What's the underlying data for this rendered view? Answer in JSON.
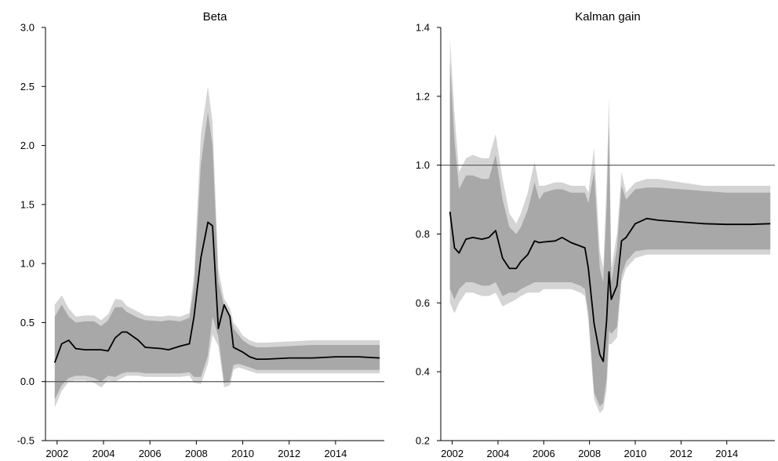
{
  "chart_data": [
    {
      "type": "area",
      "title": "Beta",
      "xlabel": "",
      "ylabel": "",
      "xlim": [
        2001.5,
        2016.1
      ],
      "ylim": [
        -0.5,
        3.0
      ],
      "x_ticks": [
        2002,
        2004,
        2006,
        2008,
        2010,
        2012,
        2014
      ],
      "y_ticks": [
        -0.5,
        0.0,
        0.5,
        1.0,
        1.5,
        2.0,
        2.5,
        3.0
      ],
      "x_tick_labels": [
        "2002",
        "2004",
        "2006",
        "2008",
        "2010",
        "2012",
        "2014"
      ],
      "y_tick_labels": [
        "-0.5",
        "0.0",
        "0.5",
        "1.0",
        "1.5",
        "2.0",
        "2.5",
        "3.0"
      ],
      "reference_line": 0.0,
      "grid": false,
      "colors": {
        "outer_band": "#d4d4d4",
        "inner_band": "#a8a8a8",
        "median": "#000000",
        "reference": "#555555"
      },
      "x": [
        2001.9,
        2002.2,
        2002.5,
        2002.8,
        2003.2,
        2003.6,
        2003.9,
        2004.2,
        2004.5,
        2004.8,
        2005.0,
        2005.5,
        2005.8,
        2006.5,
        2006.8,
        2007.3,
        2007.7,
        2007.9,
        2008.2,
        2008.5,
        2008.7,
        2008.95,
        2009.2,
        2009.45,
        2009.6,
        2009.8,
        2010.0,
        2010.3,
        2010.6,
        2011.0,
        2012.0,
        2013.0,
        2014.0,
        2015.0,
        2015.9
      ],
      "median": [
        0.16,
        0.32,
        0.35,
        0.28,
        0.27,
        0.27,
        0.27,
        0.26,
        0.37,
        0.42,
        0.42,
        0.35,
        0.29,
        0.28,
        0.27,
        0.3,
        0.32,
        0.55,
        1.05,
        1.35,
        1.32,
        0.45,
        0.65,
        0.55,
        0.29,
        0.27,
        0.25,
        0.21,
        0.19,
        0.19,
        0.2,
        0.2,
        0.21,
        0.21,
        0.2
      ],
      "lower_90": [
        -0.22,
        -0.08,
        0.0,
        0.01,
        0.01,
        -0.01,
        -0.05,
        0.01,
        0.0,
        0.03,
        0.05,
        0.05,
        0.04,
        0.04,
        0.04,
        0.04,
        0.05,
        -0.01,
        -0.02,
        0.15,
        0.4,
        0.3,
        -0.05,
        -0.03,
        0.1,
        0.12,
        0.11,
        0.09,
        0.07,
        0.07,
        0.07,
        0.07,
        0.07,
        0.07,
        0.07
      ],
      "upper_90": [
        0.65,
        0.73,
        0.62,
        0.55,
        0.56,
        0.56,
        0.52,
        0.57,
        0.7,
        0.69,
        0.64,
        0.59,
        0.56,
        0.55,
        0.56,
        0.55,
        0.58,
        0.9,
        2.1,
        2.5,
        2.2,
        0.95,
        0.7,
        0.62,
        0.5,
        0.45,
        0.39,
        0.35,
        0.33,
        0.33,
        0.34,
        0.35,
        0.35,
        0.35,
        0.35
      ],
      "lower_68": [
        -0.15,
        -0.03,
        0.03,
        0.05,
        0.05,
        0.03,
        0.0,
        0.05,
        0.04,
        0.07,
        0.08,
        0.08,
        0.07,
        0.07,
        0.07,
        0.07,
        0.08,
        0.04,
        0.04,
        0.22,
        0.55,
        0.38,
        -0.01,
        0.01,
        0.14,
        0.15,
        0.14,
        0.12,
        0.1,
        0.1,
        0.1,
        0.1,
        0.1,
        0.1,
        0.1
      ],
      "upper_68": [
        0.55,
        0.65,
        0.55,
        0.5,
        0.51,
        0.51,
        0.47,
        0.52,
        0.63,
        0.63,
        0.59,
        0.54,
        0.52,
        0.51,
        0.52,
        0.51,
        0.54,
        0.8,
        1.85,
        2.28,
        2.0,
        0.85,
        0.64,
        0.56,
        0.45,
        0.4,
        0.35,
        0.31,
        0.29,
        0.29,
        0.3,
        0.31,
        0.31,
        0.31,
        0.31
      ]
    },
    {
      "type": "area",
      "title": "Kalman gain",
      "xlabel": "",
      "ylabel": "",
      "xlim": [
        2001.5,
        2016.1
      ],
      "ylim": [
        0.2,
        1.4
      ],
      "x_ticks": [
        2002,
        2004,
        2006,
        2008,
        2010,
        2012,
        2014
      ],
      "y_ticks": [
        0.2,
        0.4,
        0.6,
        0.8,
        1.0,
        1.2,
        1.4
      ],
      "x_tick_labels": [
        "2002",
        "2004",
        "2006",
        "2008",
        "2010",
        "2012",
        "2014"
      ],
      "y_tick_labels": [
        "0.2",
        "0.4",
        "0.6",
        "0.8",
        "1.0",
        "1.2",
        "1.4"
      ],
      "reference_line": 1.0,
      "grid": false,
      "colors": {
        "outer_band": "#d4d4d4",
        "inner_band": "#a8a8a8",
        "median": "#000000",
        "reference": "#555555"
      },
      "x": [
        2001.9,
        2002.1,
        2002.3,
        2002.6,
        2002.9,
        2003.3,
        2003.6,
        2003.9,
        2004.2,
        2004.5,
        2004.8,
        2005.0,
        2005.3,
        2005.6,
        2005.8,
        2006.0,
        2006.5,
        2006.8,
        2007.2,
        2007.6,
        2007.8,
        2007.95,
        2008.2,
        2008.45,
        2008.6,
        2008.75,
        2008.85,
        2008.95,
        2009.2,
        2009.4,
        2009.6,
        2010.0,
        2010.5,
        2011.0,
        2012.0,
        2013.0,
        2014.0,
        2015.0,
        2015.9
      ],
      "median": [
        0.865,
        0.76,
        0.745,
        0.785,
        0.79,
        0.785,
        0.79,
        0.81,
        0.73,
        0.7,
        0.7,
        0.72,
        0.74,
        0.78,
        0.775,
        0.777,
        0.78,
        0.79,
        0.775,
        0.765,
        0.76,
        0.7,
        0.54,
        0.45,
        0.43,
        0.55,
        0.69,
        0.61,
        0.65,
        0.78,
        0.79,
        0.83,
        0.845,
        0.84,
        0.835,
        0.83,
        0.828,
        0.828,
        0.83
      ],
      "lower_90": [
        0.6,
        0.57,
        0.6,
        0.63,
        0.63,
        0.62,
        0.62,
        0.63,
        0.59,
        0.6,
        0.61,
        0.62,
        0.63,
        0.63,
        0.63,
        0.64,
        0.64,
        0.64,
        0.64,
        0.63,
        0.62,
        0.55,
        0.32,
        0.28,
        0.29,
        0.35,
        0.48,
        0.48,
        0.5,
        0.66,
        0.7,
        0.73,
        0.74,
        0.74,
        0.74,
        0.74,
        0.74,
        0.74,
        0.74
      ],
      "upper_90": [
        1.37,
        1.15,
        0.98,
        1.02,
        1.03,
        1.02,
        1.02,
        1.09,
        0.96,
        0.86,
        0.83,
        0.86,
        0.92,
        1.01,
        0.94,
        0.94,
        0.95,
        0.95,
        0.94,
        0.94,
        0.94,
        0.92,
        1.05,
        0.75,
        0.7,
        0.95,
        1.2,
        0.7,
        0.8,
        0.98,
        0.92,
        0.95,
        0.96,
        0.96,
        0.95,
        0.94,
        0.94,
        0.94,
        0.94
      ],
      "lower_68": [
        0.64,
        0.61,
        0.64,
        0.66,
        0.66,
        0.65,
        0.65,
        0.66,
        0.62,
        0.63,
        0.63,
        0.64,
        0.65,
        0.66,
        0.66,
        0.66,
        0.66,
        0.66,
        0.66,
        0.65,
        0.64,
        0.57,
        0.34,
        0.3,
        0.31,
        0.38,
        0.52,
        0.51,
        0.53,
        0.68,
        0.72,
        0.75,
        0.755,
        0.755,
        0.755,
        0.755,
        0.755,
        0.755,
        0.755
      ],
      "upper_68": [
        1.3,
        1.07,
        0.93,
        0.97,
        0.97,
        0.96,
        0.96,
        1.03,
        0.9,
        0.82,
        0.8,
        0.82,
        0.87,
        0.95,
        0.9,
        0.92,
        0.93,
        0.93,
        0.92,
        0.92,
        0.92,
        0.89,
        0.98,
        0.7,
        0.66,
        0.88,
        1.12,
        0.66,
        0.76,
        0.94,
        0.9,
        0.93,
        0.935,
        0.935,
        0.93,
        0.925,
        0.92,
        0.92,
        0.92
      ]
    }
  ]
}
